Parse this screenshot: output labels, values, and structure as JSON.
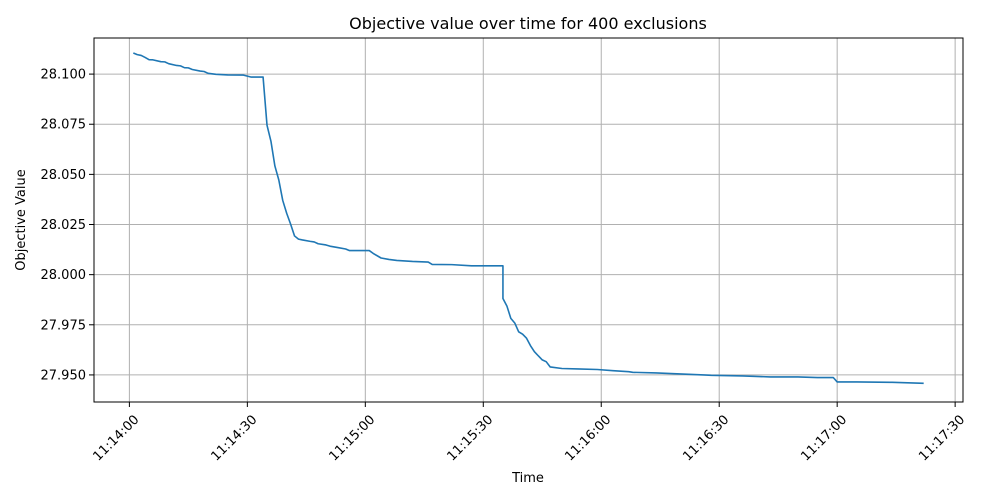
{
  "chart_data": {
    "type": "line",
    "title": "Objective value over time for 400 exclusions",
    "xlabel": "Time",
    "ylabel": "Objective Value",
    "grid": true,
    "x_ticks": [
      "11:14:00",
      "11:14:30",
      "11:15:00",
      "11:15:30",
      "11:16:00",
      "11:16:30",
      "11:17:00",
      "11:17:30"
    ],
    "y_ticks": [
      "27.950",
      "27.975",
      "28.000",
      "28.025",
      "28.050",
      "28.075",
      "28.100"
    ],
    "xlim": [
      "11:13:51",
      "11:17:32"
    ],
    "ylim": [
      27.9365,
      28.118
    ],
    "series": [
      {
        "color": "#1f77b4",
        "points": [
          [
            "11:14:01",
            28.1105
          ],
          [
            "11:14:02",
            28.1097
          ],
          [
            "11:14:03",
            28.1093
          ],
          [
            "11:14:04",
            28.1083
          ],
          [
            "11:14:05",
            28.1072
          ],
          [
            "11:14:06",
            28.1071
          ],
          [
            "11:14:08",
            28.1062
          ],
          [
            "11:14:09",
            28.1061
          ],
          [
            "11:14:10",
            28.1052
          ],
          [
            "11:14:12",
            28.1043
          ],
          [
            "11:14:13",
            28.1041
          ],
          [
            "11:14:14",
            28.1032
          ],
          [
            "11:14:15",
            28.1031
          ],
          [
            "11:14:16",
            28.1023
          ],
          [
            "11:14:18",
            28.1015
          ],
          [
            "11:14:19",
            28.1013
          ],
          [
            "11:14:20",
            28.1004
          ],
          [
            "11:14:22",
            28.0999
          ],
          [
            "11:14:25",
            28.0996
          ],
          [
            "11:14:29",
            28.0995
          ],
          [
            "11:14:31",
            28.0985
          ],
          [
            "11:14:34",
            28.0985
          ],
          [
            "11:14:35",
            28.0745
          ],
          [
            "11:14:36",
            28.0665
          ],
          [
            "11:14:37",
            28.0542
          ],
          [
            "11:14:38",
            28.0472
          ],
          [
            "11:14:39",
            28.037
          ],
          [
            "11:14:40",
            28.0306
          ],
          [
            "11:14:41",
            28.0252
          ],
          [
            "11:14:42",
            28.0193
          ],
          [
            "11:14:43",
            28.0177
          ],
          [
            "11:14:44",
            28.0173
          ],
          [
            "11:14:46",
            28.0166
          ],
          [
            "11:14:47",
            28.0163
          ],
          [
            "11:14:48",
            28.0154
          ],
          [
            "11:14:50",
            28.0148
          ],
          [
            "11:14:51",
            28.0142
          ],
          [
            "11:14:53",
            28.0135
          ],
          [
            "11:14:55",
            28.0128
          ],
          [
            "11:14:56",
            28.012
          ],
          [
            "11:15:01",
            28.012
          ],
          [
            "11:15:02",
            28.0106
          ],
          [
            "11:15:04",
            28.0083
          ],
          [
            "11:15:06",
            28.0076
          ],
          [
            "11:15:08",
            28.0071
          ],
          [
            "11:15:12",
            28.0066
          ],
          [
            "11:15:16",
            28.0063
          ],
          [
            "11:15:17",
            28.0051
          ],
          [
            "11:15:22",
            28.005
          ],
          [
            "11:15:27",
            28.0044
          ],
          [
            "11:15:35",
            28.0044
          ],
          [
            "11:15:35",
            27.9881
          ],
          [
            "11:15:36",
            27.9844
          ],
          [
            "11:15:37",
            27.9782
          ],
          [
            "11:15:38",
            27.9759
          ],
          [
            "11:15:39",
            27.9715
          ],
          [
            "11:15:40",
            27.9703
          ],
          [
            "11:15:41",
            27.9683
          ],
          [
            "11:15:42",
            27.9646
          ],
          [
            "11:15:43",
            27.9616
          ],
          [
            "11:15:44",
            27.9595
          ],
          [
            "11:15:45",
            27.9575
          ],
          [
            "11:15:46",
            27.9566
          ],
          [
            "11:15:47",
            27.954
          ],
          [
            "11:15:50",
            27.9532
          ],
          [
            "11:15:54",
            27.953
          ],
          [
            "11:15:59",
            27.9527
          ],
          [
            "11:16:03",
            27.9521
          ],
          [
            "11:16:07",
            27.9516
          ],
          [
            "11:16:08",
            27.9513
          ],
          [
            "11:16:14",
            27.951
          ],
          [
            "11:16:20",
            27.9505
          ],
          [
            "11:16:26",
            27.95
          ],
          [
            "11:16:28",
            27.9498
          ],
          [
            "11:16:36",
            27.9495
          ],
          [
            "11:16:43",
            27.949
          ],
          [
            "11:16:50",
            27.949
          ],
          [
            "11:16:55",
            27.9487
          ],
          [
            "11:16:59",
            27.9487
          ],
          [
            "11:17:00",
            27.9465
          ],
          [
            "11:17:05",
            27.9465
          ],
          [
            "11:17:14",
            27.9463
          ],
          [
            "11:17:22",
            27.9458
          ]
        ]
      }
    ]
  }
}
